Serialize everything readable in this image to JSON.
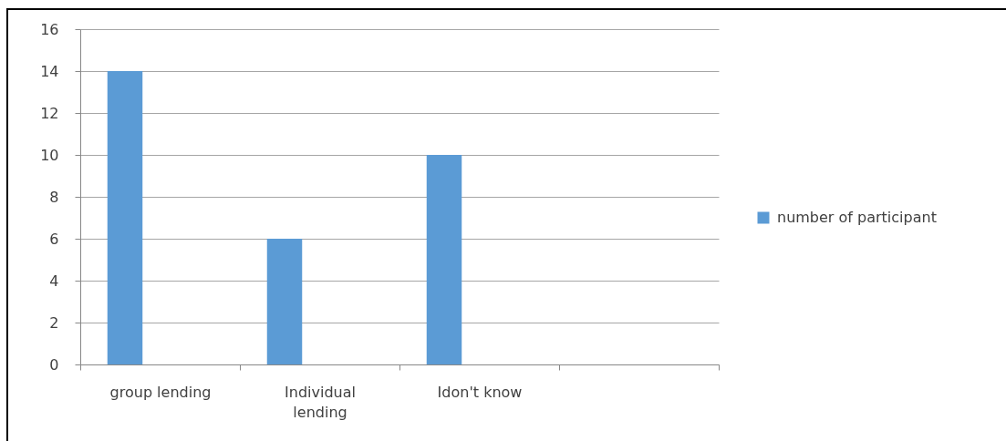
{
  "chart_data": {
    "type": "bar",
    "categories": [
      "group lending",
      "Individual lending",
      "Idon't know",
      null
    ],
    "series": [
      {
        "name": "number of participant",
        "color": "#5b9bd5",
        "values": [
          14,
          6,
          10,
          null
        ]
      }
    ],
    "ylim": [
      0,
      16
    ],
    "yticks": [
      0,
      2,
      4,
      6,
      8,
      10,
      12,
      14,
      16
    ],
    "grid": "y",
    "legend": "right"
  }
}
